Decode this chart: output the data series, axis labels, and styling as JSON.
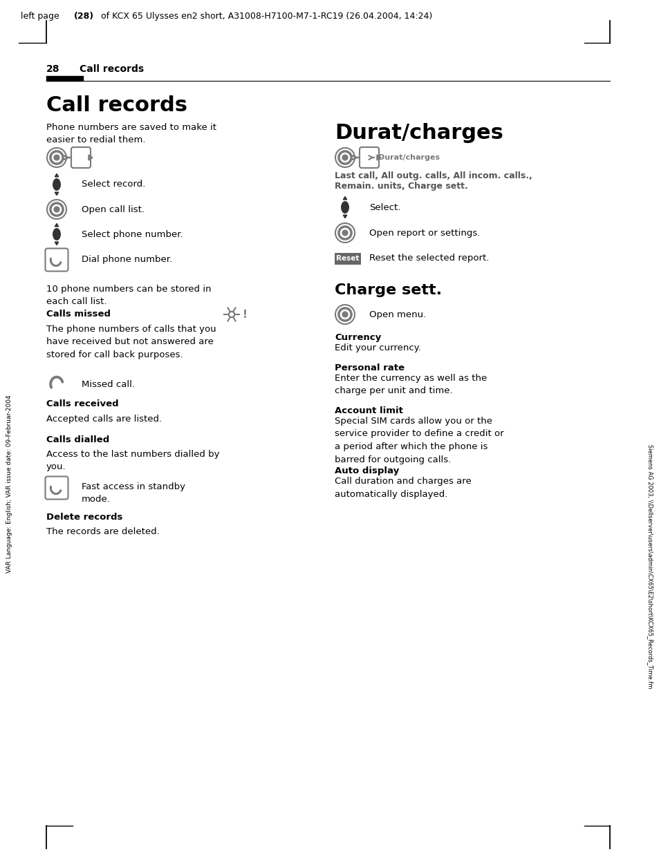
{
  "header_text": "left page (28) of KCX 65 Ulysses en2 short, A31008-H7100-M7-1-RC19 (26.04.2004, 14:24)",
  "page_num": "28",
  "page_title_section": "Call records",
  "bg_color": "#ffffff",
  "text_color": "#000000",
  "gray_color": "#7a7a7a",
  "icon_color": "#7a7a7a",
  "side_text_left": "VAR Language: English; VAR issue date: 09-Februar-2004",
  "side_text_right": "Siemens AG 2003, \\\\Dellserver\\users\\admin\\CX65\\E2\\short\\KCX65_Records_Time.fm"
}
